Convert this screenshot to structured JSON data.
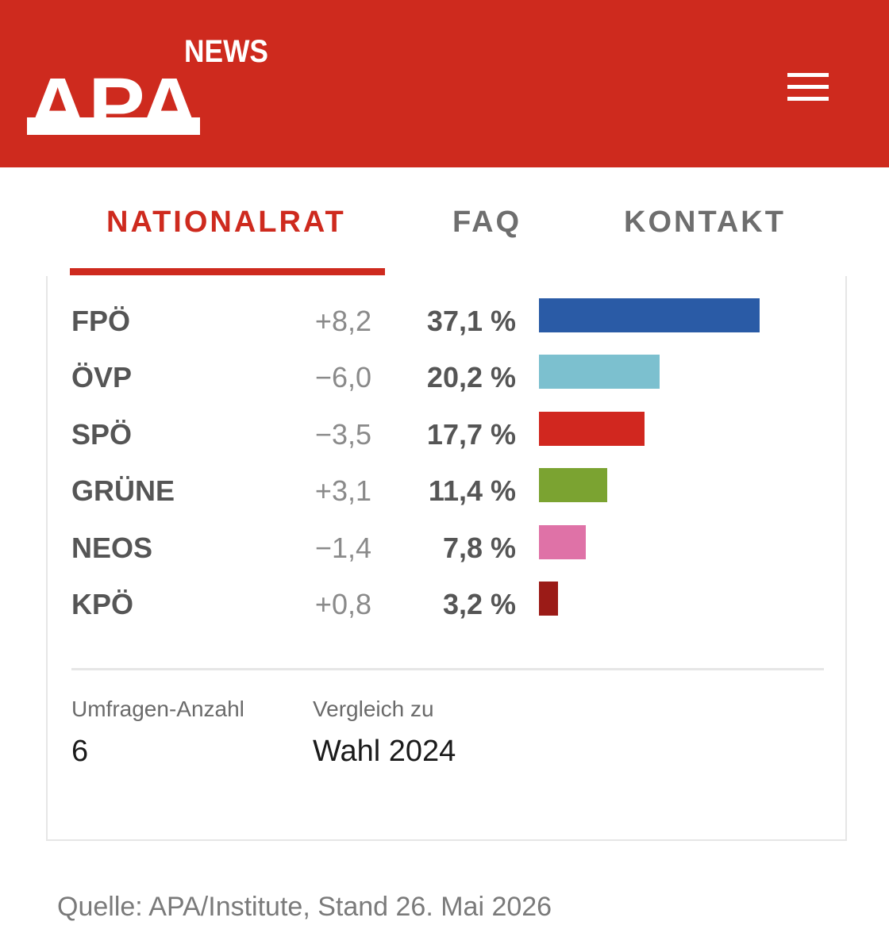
{
  "header": {
    "logo_text": "APA",
    "logo_badge": "NEWS",
    "brand_color": "#ce2a1e",
    "menu_icon": "hamburger-menu-icon"
  },
  "tabs": [
    {
      "label": "NATIONALRAT",
      "active": true
    },
    {
      "label": "FAQ",
      "active": false
    },
    {
      "label": "KONTAKT",
      "active": false
    }
  ],
  "chart_data": {
    "type": "bar",
    "orientation": "horizontal",
    "unit": "%",
    "categories": [
      "FPÖ",
      "ÖVP",
      "SPÖ",
      "GRÜNE",
      "NEOS",
      "KPÖ"
    ],
    "values": [
      37.1,
      20.2,
      17.7,
      11.4,
      7.8,
      3.2
    ],
    "value_labels": [
      "37,1 %",
      "20,2 %",
      "17,7 %",
      "11,4 %",
      "7,8 %",
      "3,2 %"
    ],
    "changes": [
      "+8,2",
      "−6,0",
      "−3,5",
      "+3,1",
      "−1,4",
      "+0,8"
    ],
    "colors": [
      "#2a5ba6",
      "#7cc0cf",
      "#d1271f",
      "#7ba331",
      "#df72a7",
      "#9b1b17"
    ]
  },
  "meta": {
    "count_label": "Umfragen-Anzahl",
    "count_value": "6",
    "comparison_label": "Vergleich zu",
    "comparison_value": "Wahl 2024"
  },
  "source": "Quelle: APA/Institute, Stand 26. Mai 2026"
}
